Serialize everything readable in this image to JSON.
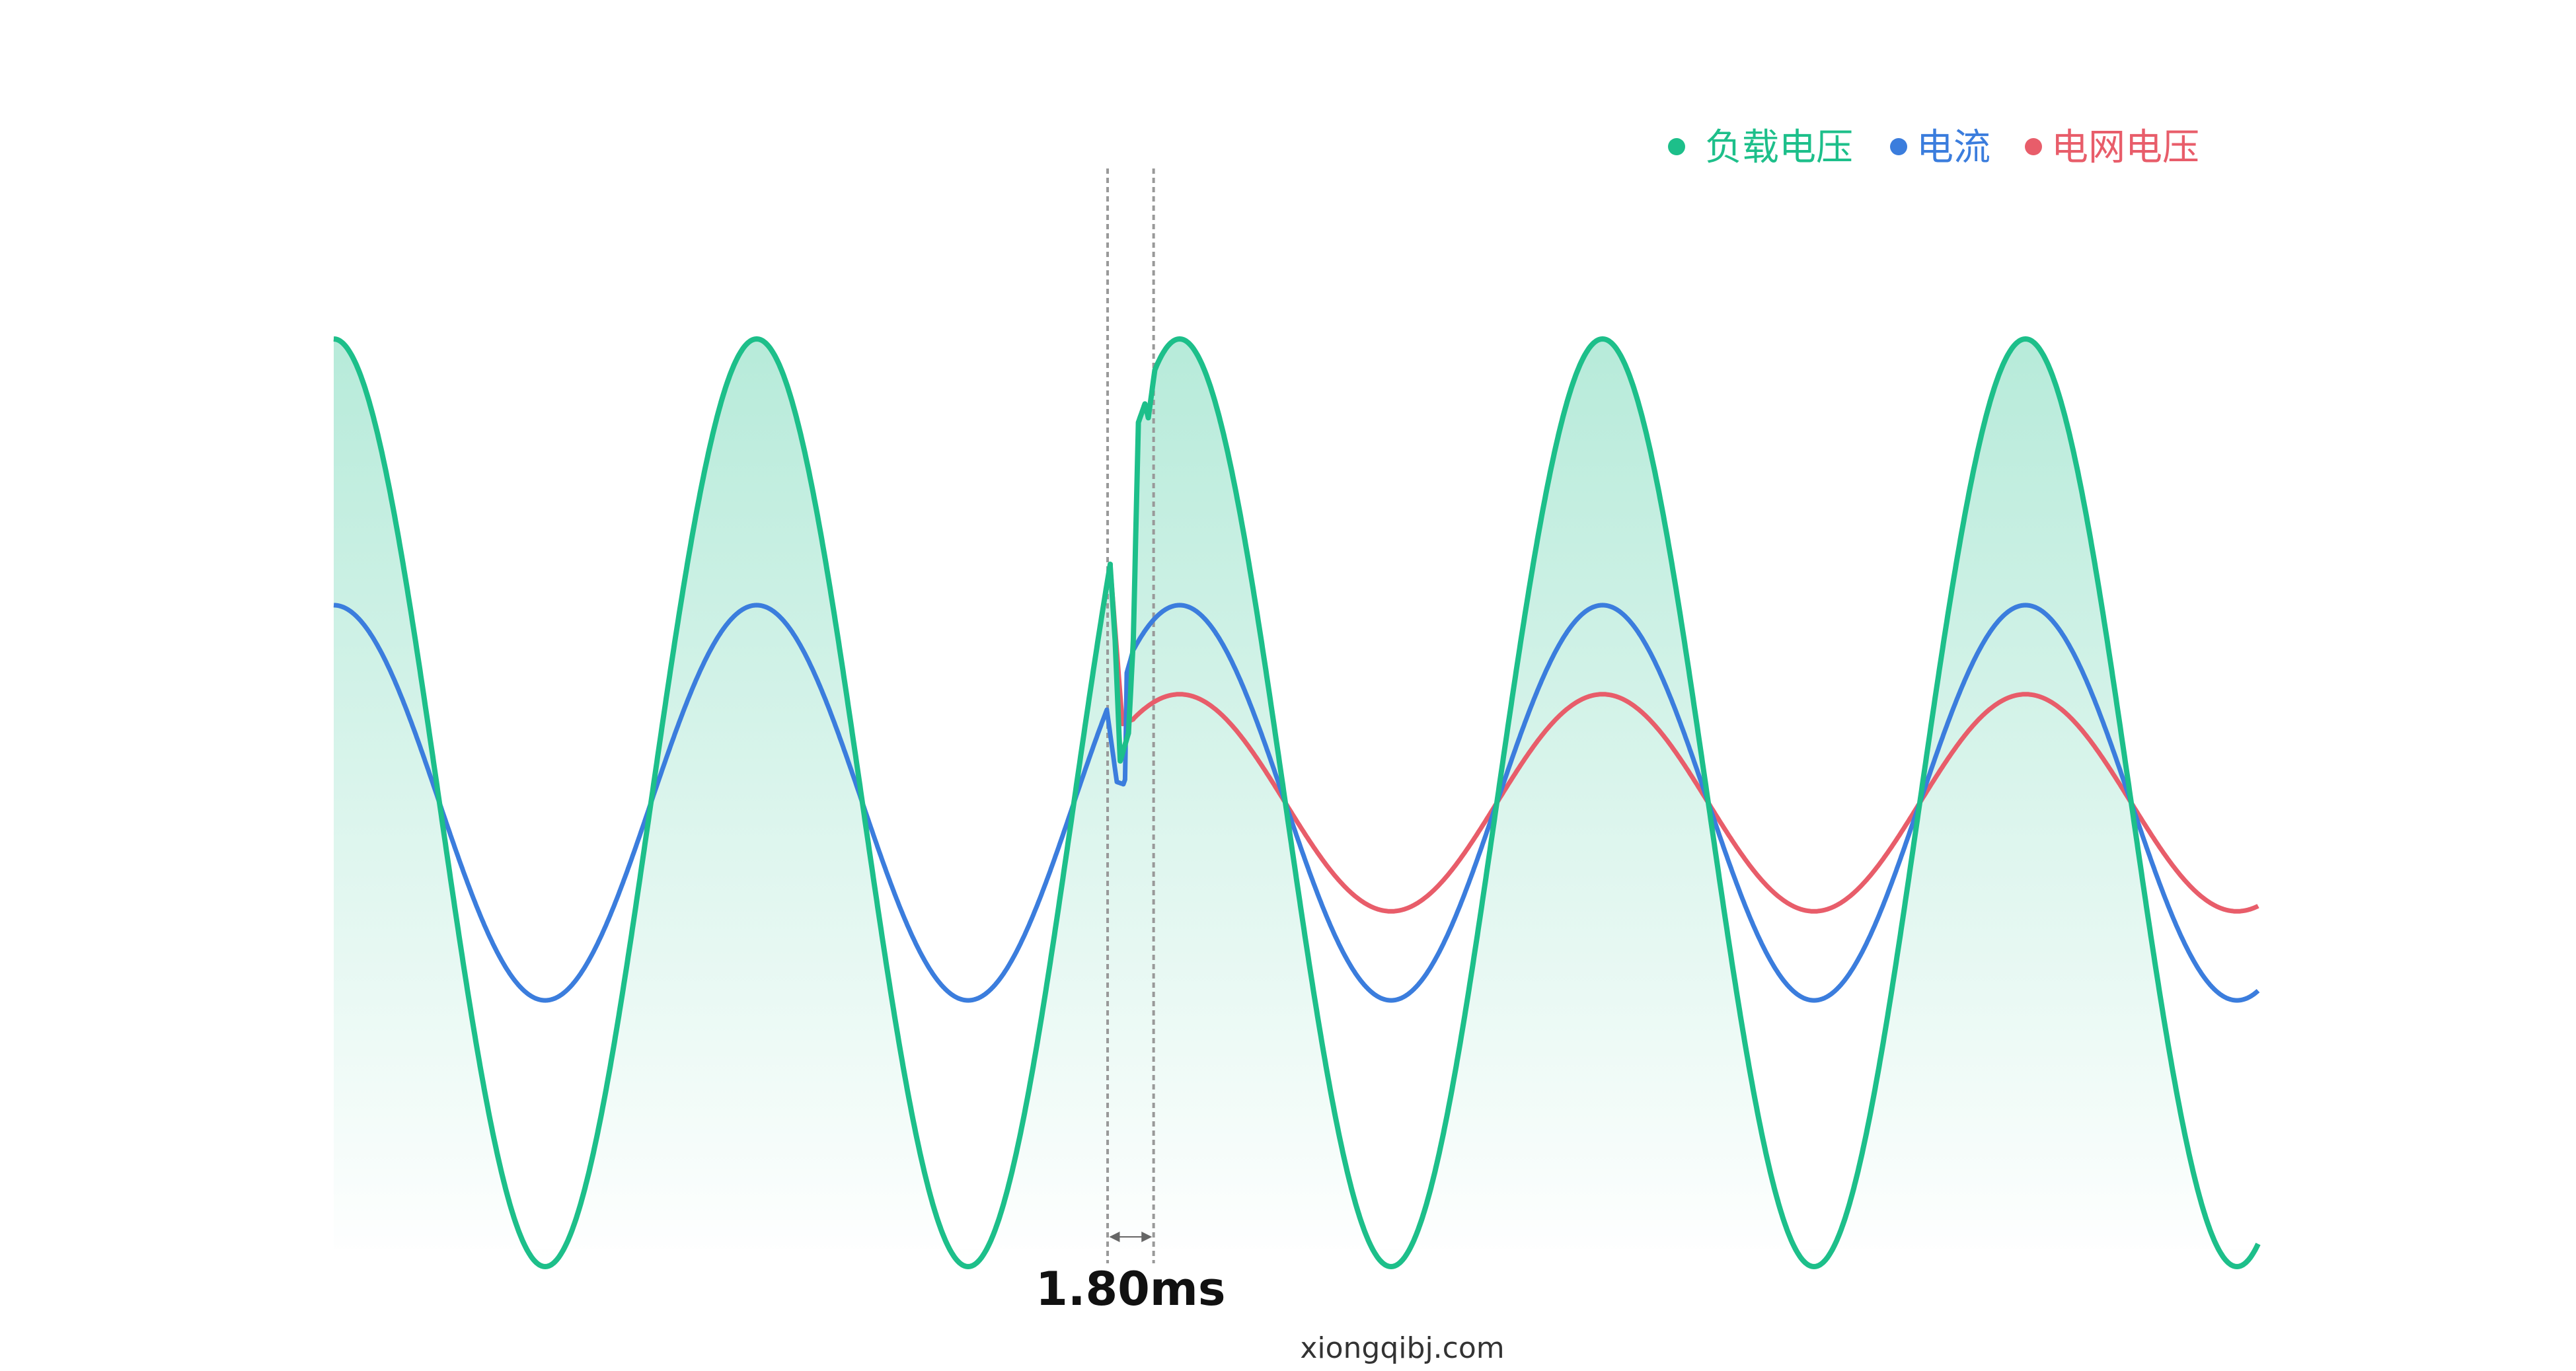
{
  "chart_data": {
    "type": "line",
    "title": "",
    "xlabel": "",
    "ylabel": "",
    "x_unit": "ms",
    "xlim": [
      0,
      91
    ],
    "ylim": [
      -1.05,
      1.05
    ],
    "grid": false,
    "legend_position": "top-right",
    "period_ms": 20,
    "event": {
      "start_ms": 36.72,
      "end_ms": 38.52,
      "label": "1.80ms"
    },
    "series": [
      {
        "name": "负载电压",
        "color": "#1dbf8a",
        "amplitude": 1.0,
        "fill": true,
        "transient": [
          [
            36.72,
            0.51
          ],
          [
            36.95,
            0.35
          ],
          [
            37.19,
            0.09
          ],
          [
            37.58,
            0.15
          ],
          [
            37.81,
            0.35
          ],
          [
            38.05,
            0.82
          ],
          [
            38.36,
            0.86
          ],
          [
            38.52,
            0.83
          ],
          [
            38.83,
            0.934
          ]
        ]
      },
      {
        "name": "电流",
        "color": "#3b7ddd",
        "amplitude": 0.426,
        "transient": [
          [
            36.56,
            0.2
          ],
          [
            37.03,
            0.045
          ],
          [
            37.34,
            0.04
          ],
          [
            37.42,
            0.05
          ],
          [
            37.5,
            0.28
          ],
          [
            37.81,
            0.33
          ]
        ]
      },
      {
        "name": "电网电压",
        "color": "#e85d6a",
        "amplitude": 0.234,
        "follows_load_until_ms": 36.72,
        "transient": [
          [
            36.72,
            0.51
          ],
          [
            37.3,
            0.17
          ],
          [
            37.81,
            0.18
          ]
        ]
      }
    ]
  },
  "watermark": "xiongqibj.com"
}
